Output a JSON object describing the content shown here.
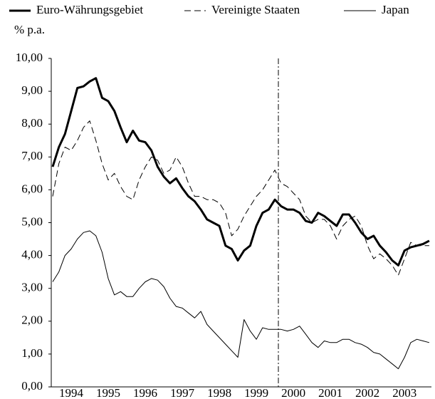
{
  "chart_data": {
    "type": "line",
    "y_label": "% p.a.",
    "categories": [
      null,
      null,
      null,
      "1994",
      null,
      null,
      null,
      null,
      null,
      "1995",
      null,
      null,
      null,
      null,
      null,
      "1996",
      null,
      null,
      null,
      null,
      null,
      "1997",
      null,
      null,
      null,
      null,
      null,
      "1998",
      null,
      null,
      null,
      null,
      null,
      "1999",
      null,
      null,
      null,
      null,
      null,
      "2000",
      null,
      null,
      null,
      null,
      null,
      "2001",
      null,
      null,
      null,
      null,
      null,
      "2002",
      null,
      null,
      null,
      null,
      null,
      "2003",
      null,
      null,
      null,
      null
    ],
    "series": [
      {
        "name": "Euro-Währungsgebiet",
        "color": "#000000",
        "width": 3,
        "dash": "solid",
        "values": [
          6.7,
          7.3,
          7.7,
          8.4,
          9.1,
          9.15,
          9.3,
          9.4,
          8.8,
          8.7,
          8.4,
          7.9,
          7.45,
          7.8,
          7.5,
          7.45,
          7.2,
          6.7,
          6.4,
          6.2,
          6.35,
          6.05,
          5.8,
          5.65,
          5.4,
          5.1,
          5.0,
          4.9,
          4.3,
          4.2,
          3.85,
          4.15,
          4.3,
          4.9,
          5.3,
          5.4,
          5.7,
          5.5,
          5.4,
          5.4,
          5.3,
          5.05,
          5.0,
          5.3,
          5.2,
          5.05,
          4.9,
          5.25,
          5.25,
          5.0,
          4.7,
          4.5,
          4.6,
          4.3,
          4.1,
          3.85,
          3.7,
          4.15,
          4.25,
          4.3,
          4.35,
          4.45
        ]
      },
      {
        "name": "Vereinigte Staaten",
        "color": "#000000",
        "width": 1,
        "dash": "dashed",
        "values": [
          5.8,
          6.8,
          7.3,
          7.2,
          7.5,
          7.9,
          8.1,
          7.5,
          6.8,
          6.3,
          6.5,
          6.1,
          5.8,
          5.7,
          6.3,
          6.7,
          7.0,
          6.9,
          6.5,
          6.6,
          7.0,
          6.7,
          6.2,
          5.8,
          5.8,
          5.7,
          5.7,
          5.6,
          5.3,
          4.6,
          4.8,
          5.2,
          5.5,
          5.8,
          6.0,
          6.3,
          6.6,
          6.2,
          6.1,
          5.9,
          5.7,
          5.2,
          5.0,
          5.1,
          5.1,
          4.9,
          4.5,
          4.9,
          5.1,
          5.2,
          4.9,
          4.3,
          3.9,
          4.05,
          3.9,
          3.7,
          3.4,
          3.9,
          4.4,
          4.3,
          4.3,
          4.3
        ]
      },
      {
        "name": "Japan",
        "color": "#000000",
        "width": 1,
        "dash": "solid",
        "values": [
          3.2,
          3.5,
          4.0,
          4.2,
          4.5,
          4.7,
          4.75,
          4.6,
          4.1,
          3.3,
          2.8,
          2.9,
          2.75,
          2.75,
          3.0,
          3.2,
          3.3,
          3.25,
          3.05,
          2.7,
          2.45,
          2.4,
          2.25,
          2.1,
          2.3,
          1.9,
          1.7,
          1.5,
          1.3,
          1.1,
          0.9,
          2.05,
          1.7,
          1.45,
          1.8,
          1.75,
          1.75,
          1.75,
          1.7,
          1.75,
          1.85,
          1.6,
          1.35,
          1.2,
          1.4,
          1.35,
          1.35,
          1.45,
          1.45,
          1.35,
          1.3,
          1.2,
          1.05,
          1.0,
          0.85,
          0.7,
          0.55,
          0.9,
          1.35,
          1.45,
          1.4,
          1.35
        ]
      }
    ],
    "ylim": [
      0,
      10
    ],
    "yticks": [
      {
        "value": 0,
        "label": "0,00"
      },
      {
        "value": 1,
        "label": "1,00"
      },
      {
        "value": 2,
        "label": "2,00"
      },
      {
        "value": 3,
        "label": "3,00"
      },
      {
        "value": 4,
        "label": "4,00"
      },
      {
        "value": 5,
        "label": "5,00"
      },
      {
        "value": 6,
        "label": "6,00"
      },
      {
        "value": 7,
        "label": "7,00"
      },
      {
        "value": 8,
        "label": "8,00"
      },
      {
        "value": 9,
        "label": "9,00"
      },
      {
        "value": 10,
        "label": "10,00"
      }
    ],
    "grid": false
  }
}
